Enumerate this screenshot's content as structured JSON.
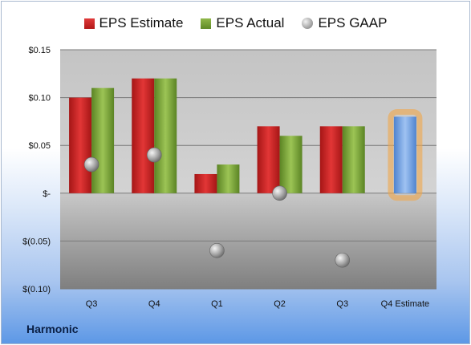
{
  "legend": {
    "items": [
      {
        "label": "EPS Estimate",
        "color": "#c9211f",
        "icon": "red-square-icon"
      },
      {
        "label": "EPS Actual",
        "color": "#77a23a",
        "icon": "green-square-icon"
      },
      {
        "label": "EPS GAAP",
        "color": "#a0a0a0",
        "icon": "gray-circle-icon"
      }
    ]
  },
  "company": "Harmonic",
  "chart_data": {
    "type": "bar",
    "categories": [
      "Q3",
      "Q4",
      "Q1",
      "Q2",
      "Q3",
      "Q4 Estimate"
    ],
    "series": [
      {
        "name": "EPS Estimate",
        "values": [
          0.1,
          0.12,
          0.02,
          0.07,
          0.07,
          null
        ],
        "color": "#c9211f"
      },
      {
        "name": "EPS Actual",
        "values": [
          0.11,
          0.12,
          0.03,
          0.06,
          0.07,
          null
        ],
        "color": "#77a23a"
      },
      {
        "name": "EPS GAAP",
        "values": [
          0.03,
          0.04,
          -0.06,
          0.0,
          -0.07,
          null
        ],
        "color": "#a0a0a0",
        "marker": "circle"
      }
    ],
    "estimate": {
      "category": "Q4 Estimate",
      "value": 0.08,
      "color": "#6a9be0",
      "highlight": "#f0a64a"
    },
    "yticks": [
      {
        "value": 0.15,
        "label": "$0.15"
      },
      {
        "value": 0.1,
        "label": "$0.10"
      },
      {
        "value": 0.05,
        "label": "$0.05"
      },
      {
        "value": 0,
        "label": "$-"
      },
      {
        "value": -0.05,
        "label": "$(0.05)"
      },
      {
        "value": -0.1,
        "label": "$(0.10)"
      }
    ],
    "ylim": [
      -0.1,
      0.15
    ],
    "grid": true,
    "legend_position": "top"
  }
}
